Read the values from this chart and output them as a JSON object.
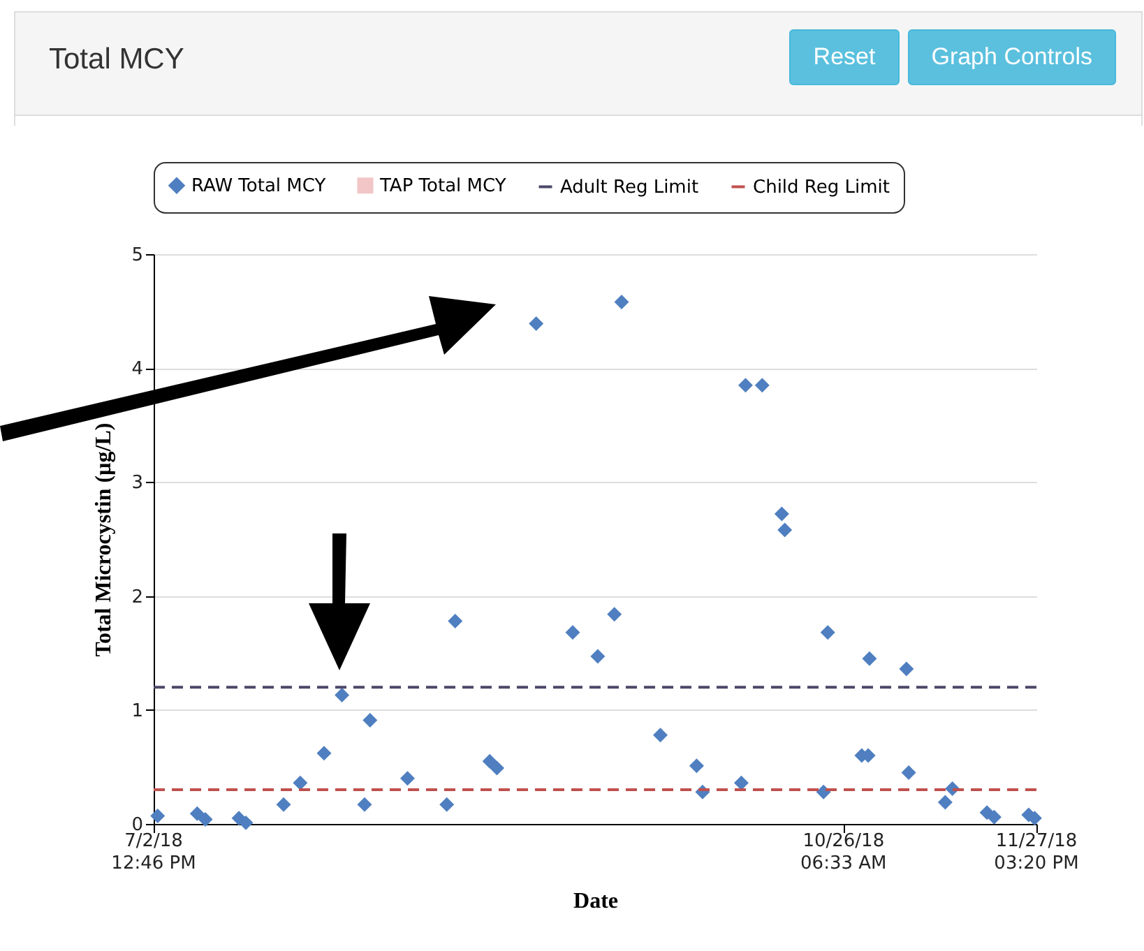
{
  "chart_data": {
    "type": "scatter",
    "title": "Total MCY",
    "xlabel": "Date",
    "ylabel": "Total Microcystin (µg/L)",
    "annotations": [
      "Reset",
      "Graph Controls"
    ],
    "legend": "top",
    "grid": "y",
    "xlim": [
      "2018-07-02T12:46",
      "2018-11-27T15:20"
    ],
    "xticks": [
      {
        "value": "2018-07-02T12:46",
        "label": "7/2/18\n12:46 PM"
      },
      {
        "value": "2018-10-26T06:33",
        "label": "10/26/18\n06:33 AM"
      },
      {
        "value": "2018-11-27T15:20",
        "label": "11/27/18\n03:20 PM"
      }
    ],
    "ylim": [
      0,
      5
    ],
    "yticks": [
      0,
      1,
      2,
      3,
      4,
      5
    ],
    "series": [
      {
        "name": "RAW Total MCY",
        "color": "#4f7fc0",
        "marker": "diamond",
        "x": [
          "2018-07-03T05:00",
          "2018-07-09T20:00",
          "2018-07-11T05:00",
          "2018-07-16T20:00",
          "2018-07-18T00:00",
          "2018-07-24T08:00",
          "2018-07-27T03:00",
          "2018-07-31T03:00",
          "2018-08-03T03:00",
          "2018-08-06T22:00",
          "2018-08-07T20:00",
          "2018-08-14T03:00",
          "2018-08-20T17:00",
          "2018-08-22T03:00",
          "2018-08-27T22:00",
          "2018-08-29T03:00",
          "2018-09-04T17:00",
          "2018-09-10T20:00",
          "2018-09-15T01:00",
          "2018-09-17T20:00",
          "2018-09-19T01:00",
          "2018-09-25T13:00",
          "2018-10-01T15:00",
          "2018-10-02T15:00",
          "2018-10-09T03:00",
          "2018-10-09T20:00",
          "2018-10-12T15:00",
          "2018-10-15T22:00",
          "2018-10-16T10:00",
          "2018-10-22T22:00",
          "2018-10-23T15:00",
          "2018-10-29T08:00",
          "2018-10-30T10:00",
          "2018-10-30T15:00",
          "2018-11-05T20:00",
          "2018-11-06T05:00",
          "2018-11-12T08:00",
          "2018-11-13T13:00",
          "2018-11-19T08:00",
          "2018-11-20T13:00",
          "2018-11-26T08:00",
          "2018-11-27T08:00"
        ],
        "values": [
          0.07,
          0.09,
          0.04,
          0.05,
          0.01,
          0.17,
          0.36,
          0.62,
          1.13,
          0.17,
          0.91,
          0.4,
          0.17,
          1.78,
          0.55,
          0.49,
          4.39,
          1.68,
          1.47,
          1.84,
          4.58,
          0.78,
          0.51,
          0.28,
          0.36,
          3.85,
          3.85,
          2.72,
          2.58,
          0.28,
          1.68,
          0.6,
          0.6,
          1.45,
          1.36,
          0.45,
          0.19,
          0.31,
          0.1,
          0.06,
          0.08,
          0.05
        ]
      },
      {
        "name": "TAP Total MCY",
        "color": "#f2c6c6",
        "marker": "square",
        "values": [
          null
        ]
      }
    ],
    "ref_lines": [
      {
        "axis": "y",
        "value": 1.2,
        "label": "Adult Reg Limit",
        "color": "#4b4868",
        "line_style": "dashed"
      },
      {
        "axis": "y",
        "value": 0.3,
        "label": "Child Reg Limit",
        "color": "#c0504d",
        "line_style": "dashed"
      }
    ]
  }
}
